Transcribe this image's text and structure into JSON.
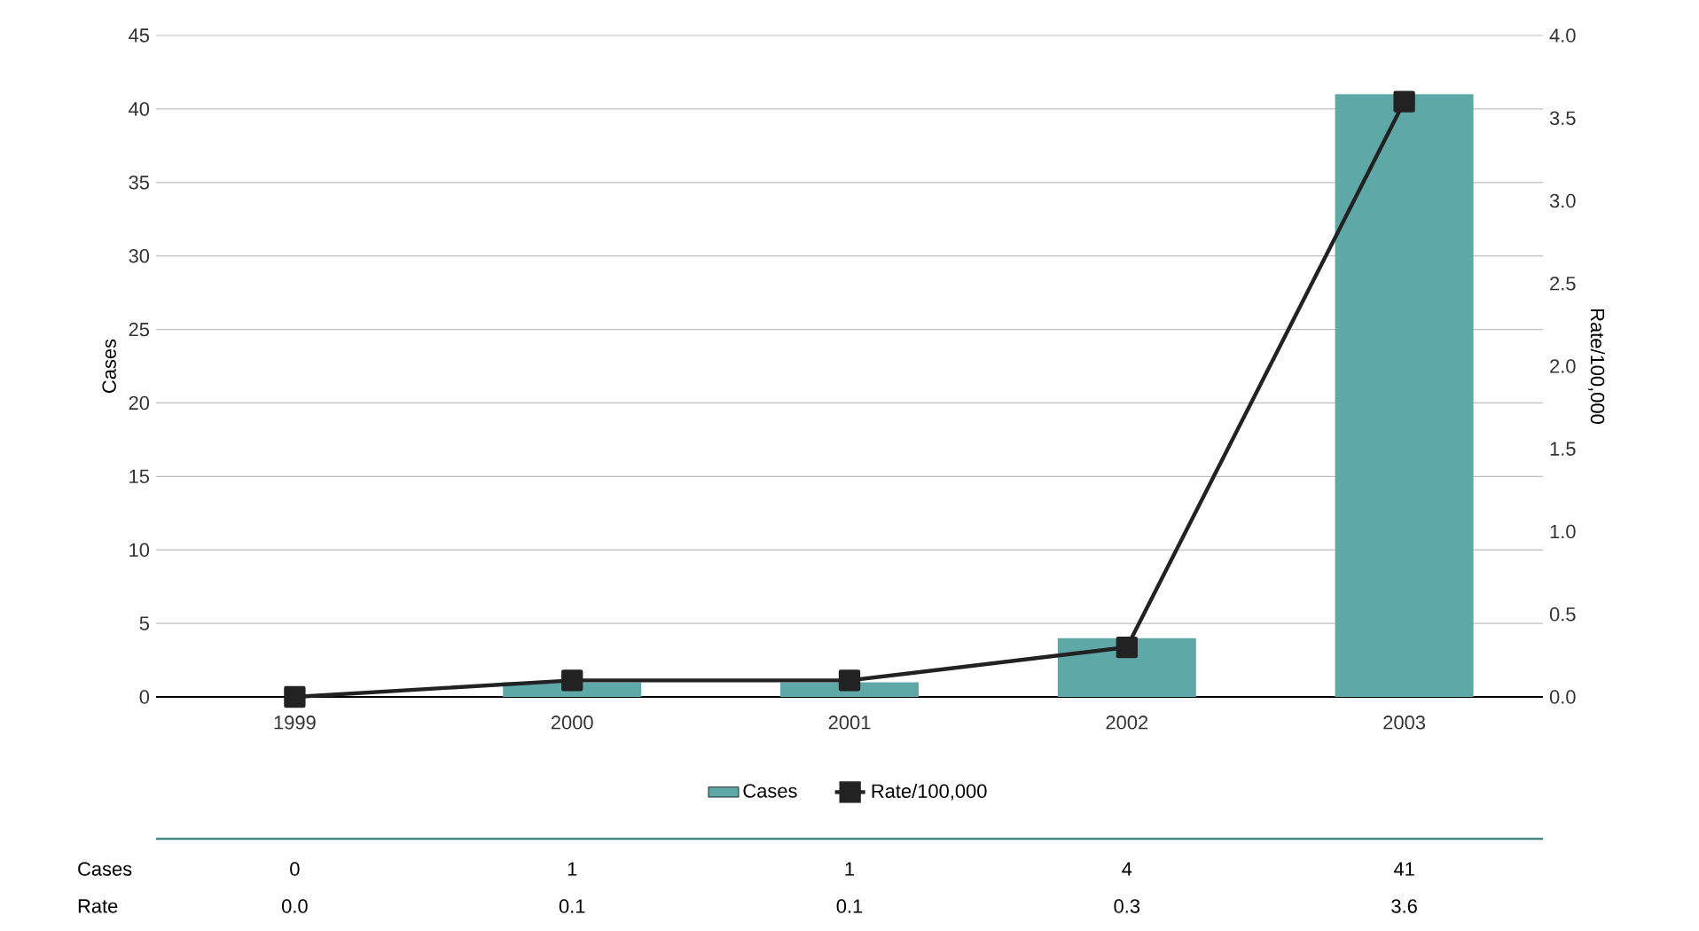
{
  "chart_data": {
    "type": "bar",
    "categories": [
      "1999",
      "2000",
      "2001",
      "2002",
      "2003"
    ],
    "series": [
      {
        "name": "Cases",
        "color": "#5fa8a8",
        "values": [
          0,
          1,
          1,
          4,
          41
        ],
        "value_labels": [
          "0",
          "1",
          "1",
          "4",
          "41"
        ]
      },
      {
        "name": "Rate/100,000",
        "type": "line",
        "axis": "y2",
        "color": "#222222",
        "marker": "square",
        "line_style": "solid",
        "values": [
          0.0,
          0.1,
          0.1,
          0.3,
          3.6
        ],
        "value_labels": [
          "0.0",
          "0.1",
          "0.1",
          "0.3",
          "3.6"
        ]
      }
    ],
    "ylabel": "Cases",
    "y2label": "Rate/100,000",
    "ylim": [
      0,
      45
    ],
    "yticks": [
      0,
      5,
      10,
      15,
      20,
      25,
      30,
      35,
      40,
      45
    ],
    "y2lim": [
      0,
      4
    ],
    "y2ticks": [
      {
        "value": 0,
        "label": "0.0"
      },
      {
        "value": 0.5,
        "label": "0.5"
      },
      {
        "value": 1,
        "label": "1.0"
      },
      {
        "value": 1.5,
        "label": "1.5"
      },
      {
        "value": 2,
        "label": "2.0"
      },
      {
        "value": 2.5,
        "label": "2.5"
      },
      {
        "value": 3,
        "label": "3.0"
      },
      {
        "value": 3.5,
        "label": "3.5"
      },
      {
        "value": 4,
        "label": "4.0"
      }
    ],
    "annotations": [
      "Cases",
      "Rate"
    ],
    "grid": "y",
    "legend": "bottom"
  }
}
